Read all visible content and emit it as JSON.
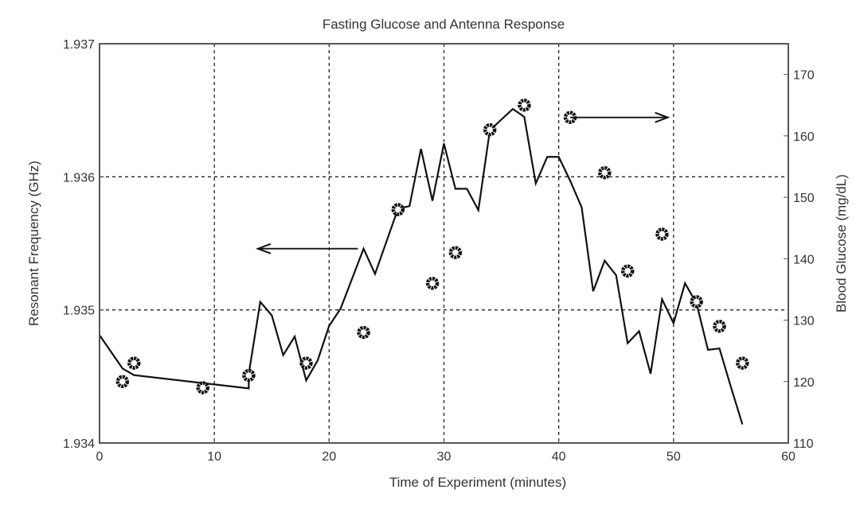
{
  "chart_data": {
    "type": "line",
    "title": "Fasting Glucose and Antenna Response",
    "xlabel": "Time of Experiment (minutes)",
    "ylabel_left": "Resonant Frequency (GHz)",
    "ylabel_right": "Blood Glucose (mg/dL)",
    "xlim": [
      0,
      60
    ],
    "ylim_left": [
      1.934,
      1.937
    ],
    "ylim_right": [
      110,
      175
    ],
    "x_ticks": [
      0,
      10,
      20,
      30,
      40,
      50,
      60
    ],
    "y_ticks_left": [
      "1.934",
      "1.935",
      "1.936",
      "1.937"
    ],
    "y_ticks_right": [
      110,
      120,
      130,
      140,
      150,
      160,
      170
    ],
    "grid": true,
    "series": [
      {
        "name": "Resonant Frequency",
        "axis": "left",
        "style": "line",
        "x": [
          0,
          2,
          3,
          13,
          13,
          14,
          15,
          16,
          17,
          18,
          19,
          20,
          21,
          23,
          24,
          26,
          27,
          28,
          29,
          30,
          31,
          32,
          33,
          34,
          35,
          36,
          37,
          38,
          39,
          40,
          41,
          42,
          43,
          44,
          45,
          46,
          47,
          48,
          49,
          50,
          51,
          52,
          53,
          54,
          55,
          56
        ],
        "y": [
          1.93481,
          1.93456,
          1.93451,
          1.93441,
          1.93452,
          1.93506,
          1.93496,
          1.93466,
          1.9348,
          1.93447,
          1.93462,
          1.93488,
          1.93501,
          1.93546,
          1.93527,
          1.93576,
          1.93578,
          1.93621,
          1.93582,
          1.93625,
          1.93591,
          1.93591,
          1.93575,
          1.93635,
          1.93643,
          1.93651,
          1.93645,
          1.93595,
          1.93615,
          1.93615,
          1.93597,
          1.93577,
          1.93514,
          1.93537,
          1.93526,
          1.93475,
          1.93484,
          1.93452,
          1.93508,
          1.9349,
          1.9352,
          1.93505,
          1.9347,
          1.93471,
          1.93442,
          1.93414
        ]
      },
      {
        "name": "Blood Glucose",
        "axis": "right",
        "style": "markers",
        "x": [
          2,
          3,
          9,
          13,
          18,
          23,
          26,
          29,
          31,
          34,
          37,
          41,
          44,
          46,
          49,
          52,
          54,
          56
        ],
        "y": [
          120,
          123,
          119,
          121,
          123,
          128,
          148,
          136,
          141,
          161,
          165,
          163,
          154,
          138,
          144,
          133,
          129,
          123
        ]
      }
    ],
    "annotations": [
      {
        "type": "arrow",
        "direction": "left",
        "axis": "left",
        "from_x": 22.5,
        "to_x": 13.8,
        "y": 1.93546
      },
      {
        "type": "arrow",
        "direction": "right",
        "axis": "right",
        "from_x": 41,
        "to_x": 49.5,
        "y": 163
      }
    ]
  }
}
